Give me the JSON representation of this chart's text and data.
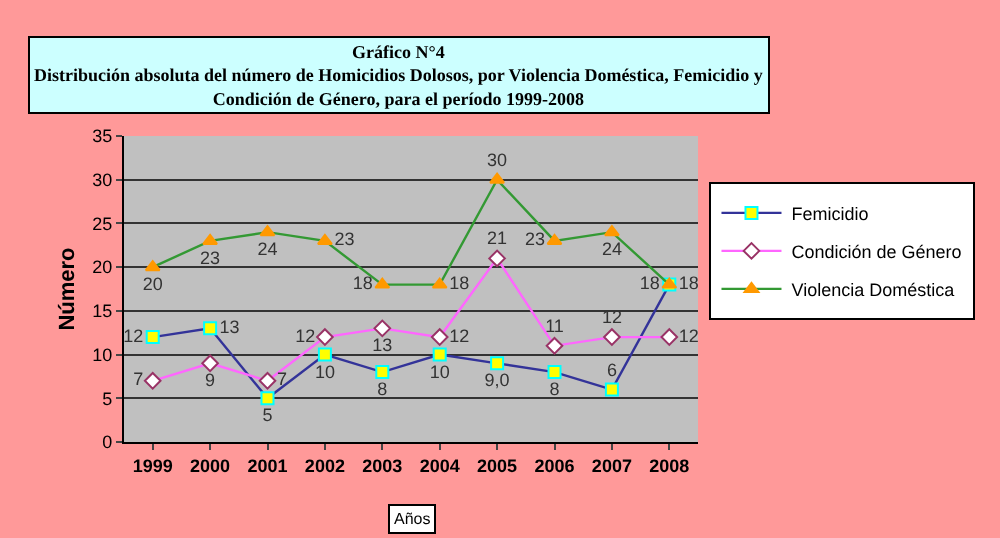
{
  "chart_data": {
    "type": "line",
    "title": "Gráfico N°4\nDistribución absoluta del número de Homicidios Dolosos, por Violencia Doméstica, Femicidio y\nCondición de Género, para el período 1999-2008",
    "xlabel": "Años",
    "ylabel": "Número",
    "categories": [
      "1999",
      "2000",
      "2001",
      "2002",
      "2003",
      "2004",
      "2005",
      "2006",
      "2007",
      "2008"
    ],
    "series": [
      {
        "name": "Femicidio",
        "color": "#333399",
        "marker": "square",
        "values": [
          12,
          13,
          5,
          10,
          8,
          10,
          9,
          8,
          6,
          18
        ],
        "value_labels": [
          "12",
          "13",
          "5",
          "10",
          "8",
          "10",
          "9,0",
          "8",
          "6",
          "18"
        ]
      },
      {
        "name": "Condición de Género",
        "color": "#ff66ff",
        "marker": "diamond",
        "values": [
          7,
          9,
          7,
          12,
          13,
          12,
          21,
          11,
          12,
          12
        ],
        "value_labels": [
          "7",
          "9",
          "7",
          "12",
          "13",
          "12",
          "21",
          "11",
          "12",
          "12"
        ]
      },
      {
        "name": "Violencia Doméstica",
        "color": "#339933",
        "marker": "triangle",
        "values": [
          20,
          23,
          24,
          23,
          18,
          18,
          30,
          23,
          24,
          18
        ],
        "value_labels": [
          "20",
          "23",
          "24",
          "23",
          "18",
          "18",
          "30",
          "23",
          "24",
          "18"
        ]
      }
    ],
    "ylim": [
      0,
      35
    ],
    "yticks": [
      0,
      5,
      10,
      15,
      20,
      25,
      30,
      35
    ],
    "grid": "y",
    "legend": "right"
  }
}
